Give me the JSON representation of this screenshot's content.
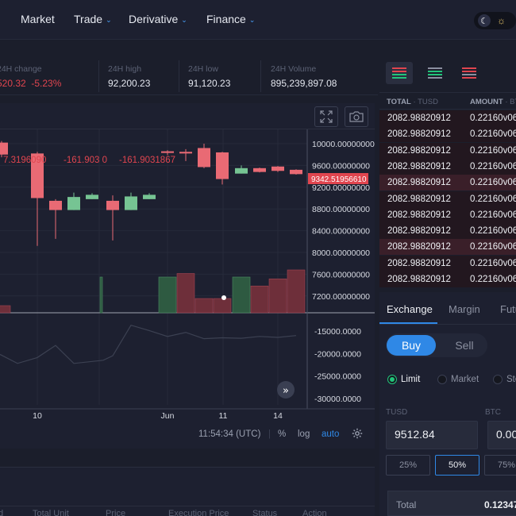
{
  "nav": {
    "items": [
      {
        "label": "Market",
        "has_menu": false
      },
      {
        "label": "Trade",
        "has_menu": true
      },
      {
        "label": "Derivative",
        "has_menu": true
      },
      {
        "label": "Finance",
        "has_menu": true
      }
    ],
    "theme_icons": [
      "moon-icon",
      "sun-icon"
    ]
  },
  "stats": {
    "change_label": "24H change",
    "change_value": "520.32",
    "change_pct": "-5.23%",
    "high_label": "24H high",
    "high_value": "92,200.23",
    "low_label": "24H low",
    "low_value": "91,120.23",
    "volume_label": "24H Volume",
    "volume_value": "895,239,897.08"
  },
  "chart_data": {
    "type": "candlestick",
    "price_axis_ticks": [
      "10000.00000000",
      "9600.00000000",
      "9200.00000000",
      "8800.00000000",
      "8400.00000000",
      "8000.00000000",
      "7600.00000000",
      "7200.00000000"
    ],
    "indicator_axis_ticks": [
      "-15000.0000",
      "-20000.0000",
      "-25000.0000",
      "-30000.0000"
    ],
    "time_ticks": [
      "10",
      "Jun",
      "11",
      "14"
    ],
    "last_price": "9342.51956610",
    "indicator_labels": [
      "7.3196090",
      "-161.903 0",
      "-161.9031867"
    ],
    "candles": [
      {
        "o": 10020,
        "c": 9800,
        "h": 10050,
        "l": 9750
      },
      {
        "o": 9820,
        "c": 9000,
        "h": 9850,
        "l": 8120
      },
      {
        "o": 8950,
        "c": 8780,
        "h": 8980,
        "l": 8250
      },
      {
        "o": 8780,
        "c": 9020,
        "h": 9100,
        "l": 8780
      },
      {
        "o": 8980,
        "c": 9060,
        "h": 9090,
        "l": 8980
      },
      {
        "o": 8950,
        "c": 8780,
        "h": 9050,
        "l": 8220
      },
      {
        "o": 8780,
        "c": 9030,
        "h": 9100,
        "l": 8780
      },
      {
        "o": 8980,
        "c": 9060,
        "h": 9090,
        "l": 8980
      },
      {
        "o": 9860,
        "c": 9830,
        "h": 9880,
        "l": 9790
      },
      {
        "o": 9850,
        "c": 9820,
        "h": 9900,
        "l": 9680
      },
      {
        "o": 9920,
        "c": 9570,
        "h": 10000,
        "l": 9550
      },
      {
        "o": 9840,
        "c": 9350,
        "h": 9850,
        "l": 9250
      },
      {
        "o": 9450,
        "c": 9550,
        "h": 9600,
        "l": 9450
      },
      {
        "o": 9550,
        "c": 9480,
        "h": 9560,
        "l": 9470
      },
      {
        "o": 9580,
        "c": 9500,
        "h": 9590,
        "l": 9480
      },
      {
        "o": 9520,
        "c": 9440,
        "h": 9530,
        "l": 9430
      }
    ],
    "volume": [
      {
        "v": 0.2,
        "up": false
      },
      {
        "v": 0.0,
        "up": false
      },
      {
        "v": 0.0,
        "up": false
      },
      {
        "v": 0.0,
        "up": false
      },
      {
        "v": 1.0,
        "up": true
      },
      {
        "v": 0.0,
        "up": false
      },
      {
        "v": 0.0,
        "up": false
      },
      {
        "v": 0.0,
        "up": false
      },
      {
        "v": 1.0,
        "up": true
      },
      {
        "v": 1.1,
        "up": false
      },
      {
        "v": 0.4,
        "up": false
      },
      {
        "v": 0.4,
        "up": false
      },
      {
        "v": 1.0,
        "up": true
      },
      {
        "v": 0.75,
        "up": false
      },
      {
        "v": 0.95,
        "up": false
      },
      {
        "v": 1.2,
        "up": false
      }
    ],
    "indicator_line": [
      -19500,
      -21500,
      -20200,
      -17500,
      -21500,
      -20800,
      -19800,
      -13000,
      -14200,
      -15500,
      -14600,
      -16000,
      -15800,
      -15900,
      -15500,
      -15700,
      -15300
    ]
  },
  "chart_footer": {
    "time": "11:54:34 (UTC)",
    "pct": "%",
    "log": "log",
    "auto": "auto"
  },
  "orders": {
    "columns": [
      "d",
      "Total Unit",
      "Price",
      "Execution Price",
      "Status",
      "Action"
    ]
  },
  "orderbook": {
    "col_total": "TOTAL",
    "col_total_unit": "· TUSD",
    "col_amount": "AMOUNT",
    "col_amount_unit": "· BTC",
    "rows": [
      {
        "price": "2082.98820912",
        "amount": "0.22160v06"
      },
      {
        "price": "2082.98820912",
        "amount": "0.22160v06"
      },
      {
        "price": "2082.98820912",
        "amount": "0.22160v06"
      },
      {
        "price": "2082.98820912",
        "amount": "0.22160v06"
      },
      {
        "price": "2082.98820912",
        "amount": "0.22160v06"
      },
      {
        "price": "2082.98820912",
        "amount": "0.22160v06"
      },
      {
        "price": "2082.98820912",
        "amount": "0.22160v06"
      },
      {
        "price": "2082.98820912",
        "amount": "0.22160v06"
      },
      {
        "price": "2082.98820912",
        "amount": "0.22160v06"
      },
      {
        "price": "2082.98820912",
        "amount": "0.22160v06"
      },
      {
        "price": "2082.98820912",
        "amount": "0.22160v06"
      }
    ]
  },
  "trade": {
    "tabs": [
      "Exchange",
      "Margin",
      "Futu"
    ],
    "buy": "Buy",
    "sell": "Sell",
    "order_types": [
      "Limit",
      "Market",
      "Sto"
    ],
    "tusd_label": "TUSD",
    "btc_label": "BTC",
    "tusd_value": "9512.84",
    "btc_value": "0.00",
    "pcts": [
      "25%",
      "50%",
      "75%"
    ],
    "total_label": "Total",
    "total_value": "0.12347"
  },
  "colors": {
    "up": "#2f8a5a",
    "down": "#e06a72",
    "accent": "#2f88e6"
  }
}
